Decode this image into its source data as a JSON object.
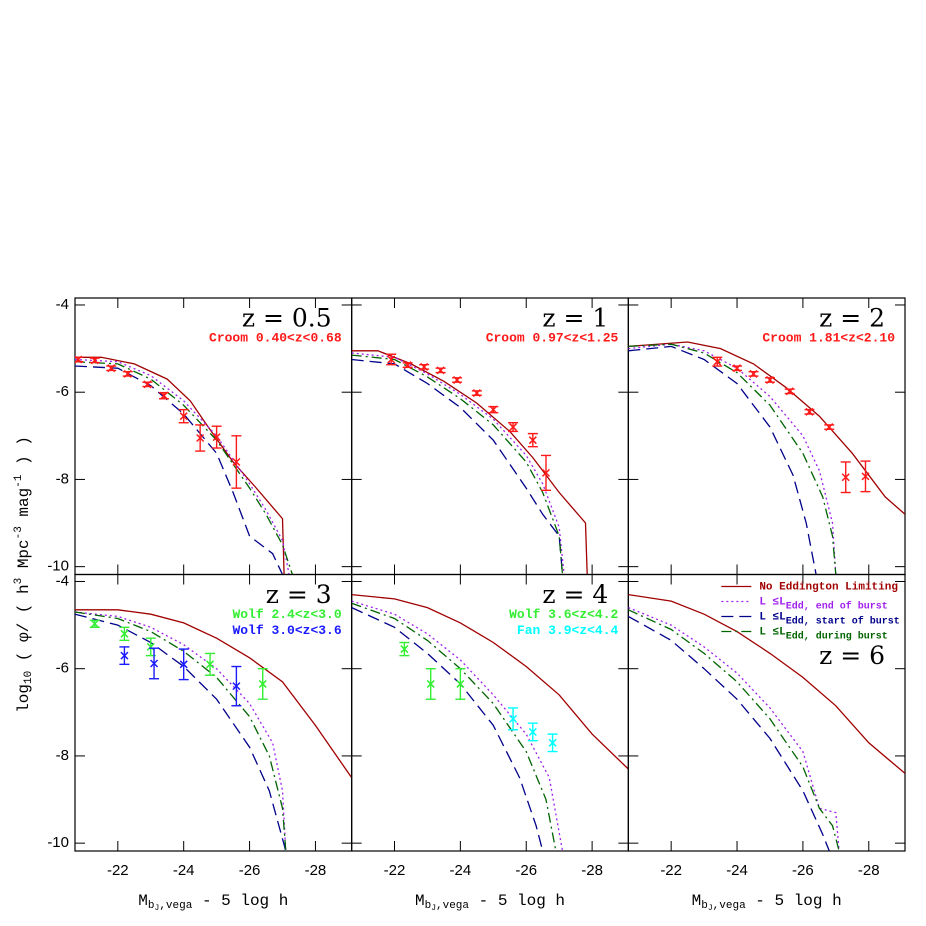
{
  "figure": {
    "y_label_parts": [
      {
        "text": "log"
      },
      {
        "text": "10",
        "shift": "sub"
      },
      {
        "text": " ( φ/ ( h"
      },
      {
        "text": "3",
        "shift": "super"
      },
      {
        "text": " Mpc"
      },
      {
        "text": "-3",
        "shift": "super"
      },
      {
        "text": " mag"
      },
      {
        "text": "-1",
        "shift": "super"
      },
      {
        "text": " ) )"
      }
    ]
  },
  "chart_data": [
    {
      "type": "line",
      "title": "z = 0.5",
      "annotations": [
        {
          "text": "Croom 0.40<z<0.68",
          "color": "#ff1a1a"
        }
      ],
      "xlim": [
        -20.7,
        -29.1
      ],
      "ylim": [
        -10.18,
        -3.84
      ],
      "xticks": [
        -22,
        -24,
        -26,
        -28
      ],
      "yticks": [
        -4,
        -6,
        -8,
        -10
      ],
      "series": [
        {
          "color": "#a00000",
          "dash": "solid",
          "x": [
            -20.7,
            -21.5,
            -22.5,
            -23.5,
            -24.2,
            -24.7,
            -25.5,
            -26.15,
            -27,
            -27.05
          ],
          "values": [
            -5.2,
            -5.2,
            -5.35,
            -5.7,
            -6.2,
            -6.75,
            -7.6,
            -8.15,
            -8.9,
            -10.18
          ]
        },
        {
          "color": "#a020f0",
          "dash": "dotted",
          "x": [
            -20.7,
            -22,
            -23,
            -24,
            -25,
            -26,
            -26.5,
            -27,
            -27.2
          ],
          "values": [
            -5.25,
            -5.3,
            -5.62,
            -6.2,
            -7.0,
            -8.1,
            -8.7,
            -9.4,
            -10.18
          ]
        },
        {
          "color": "#00008b",
          "dash": "dashed",
          "x": [
            -20.7,
            -22,
            -23,
            -24,
            -25,
            -25.5,
            -26,
            -26.7,
            -27
          ],
          "values": [
            -5.4,
            -5.45,
            -5.85,
            -6.5,
            -7.4,
            -8.3,
            -9.3,
            -9.7,
            -10.18
          ]
        },
        {
          "color": "#006400",
          "dash": "dashdot",
          "x": [
            -20.7,
            -22,
            -23,
            -24,
            -25,
            -26,
            -26.5,
            -27,
            -27.3
          ],
          "values": [
            -5.3,
            -5.35,
            -5.7,
            -6.3,
            -7.1,
            -8.2,
            -8.8,
            -9.5,
            -10.18
          ]
        }
      ],
      "points": [
        {
          "color": "#ff1a1a",
          "x": [
            -20.8,
            -21.3,
            -21.8,
            -22.3,
            -22.9,
            -23.4,
            -24.0,
            -24.5,
            -25.0,
            -25.6
          ],
          "values": [
            -5.25,
            -5.27,
            -5.45,
            -5.58,
            -5.82,
            -6.08,
            -6.55,
            -7.05,
            -7.03,
            -7.6
          ],
          "errors": [
            0.05,
            0.05,
            0.05,
            0.05,
            0.05,
            0.07,
            0.15,
            0.3,
            0.25,
            0.6
          ]
        }
      ]
    },
    {
      "type": "line",
      "title": "z = 1",
      "annotations": [
        {
          "text": "Croom 0.97<z<1.25",
          "color": "#ff1a1a"
        }
      ],
      "xlim": [
        -20.7,
        -29.1
      ],
      "ylim": [
        -10.18,
        -3.84
      ],
      "xticks": [
        -22,
        -24,
        -26,
        -28
      ],
      "yticks": [
        -4,
        -6,
        -8,
        -10
      ],
      "series": [
        {
          "color": "#a00000",
          "dash": "solid",
          "x": [
            -20.7,
            -21.5,
            -22.5,
            -23.5,
            -24.5,
            -25.5,
            -26.2,
            -27,
            -27.8,
            -27.85
          ],
          "values": [
            -5.05,
            -5.05,
            -5.35,
            -5.75,
            -6.25,
            -6.9,
            -7.5,
            -8.3,
            -9.0,
            -10.18
          ]
        },
        {
          "color": "#a020f0",
          "dash": "dotted",
          "x": [
            -20.7,
            -22,
            -23,
            -24,
            -25,
            -26,
            -26.5,
            -27,
            -27.15
          ],
          "values": [
            -5.1,
            -5.2,
            -5.58,
            -6.05,
            -6.62,
            -7.45,
            -8.1,
            -9.1,
            -10.18
          ]
        },
        {
          "color": "#00008b",
          "dash": "dashed",
          "x": [
            -20.7,
            -22,
            -23,
            -24,
            -25,
            -26,
            -26.5,
            -27,
            -27.1
          ],
          "values": [
            -5.25,
            -5.35,
            -5.8,
            -6.35,
            -7.1,
            -8.2,
            -8.8,
            -9.3,
            -10.18
          ]
        },
        {
          "color": "#006400",
          "dash": "dashdot",
          "x": [
            -20.7,
            -22,
            -23,
            -24,
            -25,
            -26,
            -26.5,
            -27,
            -27.1
          ],
          "values": [
            -5.15,
            -5.25,
            -5.65,
            -6.15,
            -6.75,
            -7.6,
            -8.3,
            -9.3,
            -10.18
          ]
        }
      ],
      "points": [
        {
          "color": "#ff1a1a",
          "x": [
            -21.9,
            -22.4,
            -22.9,
            -23.4,
            -23.9,
            -24.5,
            -25.0,
            -25.6,
            -26.2,
            -26.6
          ],
          "values": [
            -5.25,
            -5.38,
            -5.42,
            -5.5,
            -5.72,
            -6.02,
            -6.4,
            -6.8,
            -7.1,
            -7.85
          ],
          "errors": [
            0.12,
            0.05,
            0.05,
            0.05,
            0.05,
            0.05,
            0.07,
            0.1,
            0.15,
            0.4
          ]
        }
      ]
    },
    {
      "type": "line",
      "title": "z = 2",
      "annotations": [
        {
          "text": "Croom 1.81<z<2.10",
          "color": "#ff1a1a"
        }
      ],
      "xlim": [
        -20.7,
        -29.1
      ],
      "ylim": [
        -10.18,
        -3.84
      ],
      "xticks": [
        -22,
        -24,
        -26,
        -28
      ],
      "yticks": [
        -4,
        -6,
        -8,
        -10
      ],
      "series": [
        {
          "color": "#a00000",
          "dash": "solid",
          "x": [
            -20.7,
            -22.5,
            -23.5,
            -24.5,
            -25.5,
            -26.5,
            -27.5,
            -28.5,
            -29.1
          ],
          "values": [
            -4.95,
            -4.85,
            -5.0,
            -5.35,
            -5.9,
            -6.55,
            -7.4,
            -8.4,
            -8.8
          ]
        },
        {
          "color": "#a020f0",
          "dash": "dotted",
          "x": [
            -20.7,
            -22,
            -23,
            -24,
            -25,
            -26,
            -26.5,
            -26.9,
            -27.0
          ],
          "values": [
            -5.0,
            -4.9,
            -5.05,
            -5.45,
            -6.1,
            -7.0,
            -7.8,
            -9.0,
            -10.18
          ]
        },
        {
          "color": "#00008b",
          "dash": "dashed",
          "x": [
            -20.7,
            -22,
            -23,
            -24,
            -25,
            -25.7,
            -26.1,
            -26.4
          ],
          "values": [
            -5.05,
            -4.95,
            -5.25,
            -5.8,
            -6.8,
            -7.9,
            -9.0,
            -10.18
          ]
        },
        {
          "color": "#006400",
          "dash": "dashdot",
          "x": [
            -20.7,
            -22,
            -23,
            -24,
            -25,
            -26,
            -26.6,
            -26.9,
            -27
          ],
          "values": [
            -4.95,
            -4.9,
            -5.1,
            -5.55,
            -6.3,
            -7.4,
            -8.4,
            -9.3,
            -10.18
          ]
        }
      ],
      "points": [
        {
          "color": "#ff1a1a",
          "x": [
            -23.4,
            -24.0,
            -24.5,
            -25.0,
            -25.6,
            -26.2,
            -26.8,
            -27.3,
            -27.9
          ],
          "values": [
            -5.3,
            -5.45,
            -5.58,
            -5.72,
            -5.98,
            -6.45,
            -6.8,
            -7.95,
            -7.93
          ],
          "errors": [
            0.1,
            0.05,
            0.05,
            0.05,
            0.05,
            0.05,
            0.05,
            0.35,
            0.35
          ]
        }
      ]
    },
    {
      "type": "line",
      "title": "z = 3",
      "annotations": [
        {
          "text": "Wolf 2.4<z<3.0",
          "color": "#33ee33"
        },
        {
          "text": "Wolf 3.0<z<3.6",
          "color": "#1a1aff"
        }
      ],
      "xlim": [
        -20.7,
        -29.1
      ],
      "ylim": [
        -10.18,
        -3.84
      ],
      "xticks": [
        -22,
        -24,
        -26,
        -28
      ],
      "yticks": [
        -4,
        -6,
        -8,
        -10
      ],
      "x_label_parts": [
        {
          "text": "M"
        },
        {
          "text": "b",
          "shift": "sub"
        },
        {
          "text": "J",
          "shift": "subsub"
        },
        {
          "text": ",vega",
          "shift": "sub"
        },
        {
          "text": " - 5 log h"
        }
      ],
      "series": [
        {
          "color": "#a00000",
          "dash": "solid",
          "x": [
            -20.7,
            -22,
            -23,
            -24,
            -25,
            -26,
            -27,
            -28,
            -29.1
          ],
          "values": [
            -4.65,
            -4.65,
            -4.75,
            -4.95,
            -5.3,
            -5.75,
            -6.3,
            -7.3,
            -8.5
          ]
        },
        {
          "color": "#a020f0",
          "dash": "dotted",
          "x": [
            -20.7,
            -22,
            -23,
            -24,
            -25,
            -26,
            -26.7,
            -27,
            -27.1
          ],
          "values": [
            -4.7,
            -4.8,
            -5.05,
            -5.45,
            -6.0,
            -6.8,
            -7.7,
            -8.8,
            -10.18
          ]
        },
        {
          "color": "#00008b",
          "dash": "dashed",
          "x": [
            -20.7,
            -22,
            -23,
            -24,
            -25,
            -26,
            -26.6,
            -27,
            -27.1
          ],
          "values": [
            -4.75,
            -5.0,
            -5.4,
            -5.95,
            -6.7,
            -7.8,
            -8.8,
            -9.9,
            -10.18
          ]
        },
        {
          "color": "#006400",
          "dash": "dashdot",
          "x": [
            -20.7,
            -22,
            -23,
            -24,
            -25,
            -26,
            -26.6,
            -27,
            -27.1
          ],
          "values": [
            -4.7,
            -4.85,
            -5.15,
            -5.6,
            -6.2,
            -7.1,
            -8.0,
            -9.2,
            -10.18
          ]
        }
      ],
      "points": [
        {
          "color": "#33ee33",
          "x": [
            -21.3,
            -22.2,
            -23.0,
            -24.8,
            -26.4
          ],
          "values": [
            -4.97,
            -5.2,
            -5.5,
            -5.9,
            -6.35
          ],
          "errors": [
            0.08,
            0.15,
            0.2,
            0.25,
            0.35
          ]
        },
        {
          "color": "#1a1aff",
          "x": [
            -22.2,
            -23.1,
            -24.0,
            -25.6
          ],
          "values": [
            -5.7,
            -5.88,
            -5.9,
            -6.4
          ],
          "errors": [
            0.2,
            0.35,
            0.35,
            0.45
          ]
        }
      ]
    },
    {
      "type": "line",
      "title": "z = 4",
      "annotations": [
        {
          "text": "Wolf 3.6<z<4.2",
          "color": "#33ee33"
        },
        {
          "text": "Fan 3.9<z<4.4",
          "color": "#00ffff"
        }
      ],
      "xlim": [
        -20.7,
        -29.1
      ],
      "ylim": [
        -10.18,
        -3.84
      ],
      "xticks": [
        -22,
        -24,
        -26,
        -28
      ],
      "yticks": [
        -4,
        -6,
        -8,
        -10
      ],
      "x_label_parts": [
        {
          "text": "M"
        },
        {
          "text": "b",
          "shift": "sub"
        },
        {
          "text": "J",
          "shift": "subsub"
        },
        {
          "text": ",vega",
          "shift": "sub"
        },
        {
          "text": " - 5 log h"
        }
      ],
      "series": [
        {
          "color": "#a00000",
          "dash": "solid",
          "x": [
            -20.7,
            -22,
            -23,
            -24,
            -25,
            -26,
            -27,
            -28,
            -29.1
          ],
          "values": [
            -4.3,
            -4.4,
            -4.6,
            -4.95,
            -5.4,
            -5.95,
            -6.6,
            -7.5,
            -8.3
          ]
        },
        {
          "color": "#a020f0",
          "dash": "dotted",
          "x": [
            -20.7,
            -22,
            -23,
            -24,
            -25,
            -26,
            -26.7,
            -27.1
          ],
          "values": [
            -4.45,
            -4.75,
            -5.2,
            -5.8,
            -6.6,
            -7.5,
            -8.5,
            -10.18
          ]
        },
        {
          "color": "#00008b",
          "dash": "dashed",
          "x": [
            -20.7,
            -22,
            -23,
            -24,
            -25,
            -25.8,
            -26.3,
            -26.5
          ],
          "values": [
            -4.6,
            -5.05,
            -5.65,
            -6.35,
            -7.3,
            -8.5,
            -9.6,
            -10.18
          ]
        },
        {
          "color": "#006400",
          "dash": "dashdot",
          "x": [
            -20.7,
            -22,
            -23,
            -24,
            -25,
            -26,
            -26.6,
            -26.9
          ],
          "values": [
            -4.5,
            -4.85,
            -5.35,
            -6.0,
            -6.8,
            -7.9,
            -9.0,
            -10.18
          ]
        }
      ],
      "points": [
        {
          "color": "#33ee33",
          "x": [
            -22.3,
            -23.1,
            -24.0
          ],
          "values": [
            -5.55,
            -6.35,
            -6.35
          ],
          "errors": [
            0.15,
            0.35,
            0.35
          ]
        },
        {
          "color": "#00ffff",
          "x": [
            -25.6,
            -26.2,
            -26.8
          ],
          "values": [
            -7.15,
            -7.45,
            -7.7
          ],
          "errors": [
            0.25,
            0.2,
            0.2
          ]
        }
      ]
    },
    {
      "type": "line",
      "title": "z = 6",
      "legend": true,
      "xlim": [
        -20.7,
        -29.1
      ],
      "ylim": [
        -10.18,
        -3.84
      ],
      "xticks": [
        -22,
        -24,
        -26,
        -28
      ],
      "yticks": [
        -4,
        -6,
        -8,
        -10
      ],
      "x_label_parts": [
        {
          "text": "M"
        },
        {
          "text": "b",
          "shift": "sub"
        },
        {
          "text": "J",
          "shift": "subsub"
        },
        {
          "text": ",vega",
          "shift": "sub"
        },
        {
          "text": " - 5 log h"
        }
      ],
      "series": [
        {
          "name": "No Eddington Limiting",
          "color": "#a00000",
          "dash": "solid",
          "x": [
            -20.7,
            -22,
            -23,
            -24,
            -25,
            -26,
            -27,
            -28,
            -29.1
          ],
          "values": [
            -4.3,
            -4.45,
            -4.75,
            -5.15,
            -5.65,
            -6.2,
            -6.85,
            -7.7,
            -8.4
          ]
        },
        {
          "name": "L ≤L",
          "name_sub": "Edd, end of burst",
          "color": "#a020f0",
          "dash": "dotted",
          "x": [
            -20.7,
            -22,
            -23,
            -24,
            -25,
            -26,
            -26.5,
            -27.0,
            -27.1
          ],
          "values": [
            -4.6,
            -5.0,
            -5.5,
            -6.1,
            -6.9,
            -7.9,
            -9.2,
            -9.3,
            -10.18
          ]
        },
        {
          "name": "L ≤L",
          "name_sub": "Edd, start of burst",
          "color": "#00008b",
          "dash": "dashed",
          "x": [
            -20.7,
            -22,
            -23,
            -24,
            -25,
            -26,
            -26.6,
            -26.8
          ],
          "values": [
            -4.8,
            -5.35,
            -6.0,
            -6.7,
            -7.6,
            -8.8,
            -9.8,
            -10.18
          ]
        },
        {
          "name": "L ≤L",
          "name_sub": "Edd, during burst",
          "color": "#006400",
          "dash": "dashdot",
          "x": [
            -20.7,
            -22,
            -23,
            -24,
            -25,
            -26,
            -26.5,
            -26.9,
            -27.1
          ],
          "values": [
            -4.65,
            -5.1,
            -5.65,
            -6.3,
            -7.15,
            -8.25,
            -9.2,
            -9.6,
            -10.18
          ]
        }
      ]
    }
  ]
}
